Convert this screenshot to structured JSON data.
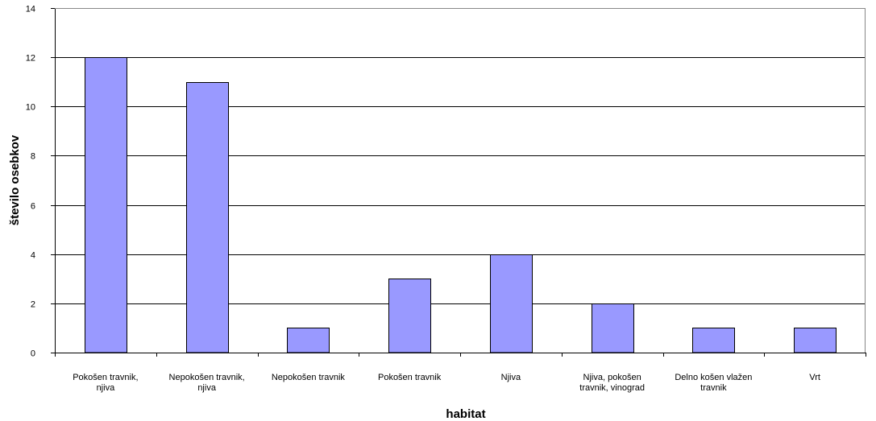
{
  "chart_data": {
    "type": "bar",
    "categories": [
      [
        "Pokošen travnik,",
        "njiva"
      ],
      [
        "Nepokošen travnik,",
        "njiva"
      ],
      [
        "Nepokošen travnik"
      ],
      [
        "Pokošen travnik"
      ],
      [
        "Njiva"
      ],
      [
        "Njiva, pokošen",
        "travnik, vinograd"
      ],
      [
        "Delno košen vlažen",
        "travnik"
      ],
      [
        "Vrt"
      ]
    ],
    "values": [
      12,
      11,
      1,
      3,
      4,
      2,
      1,
      1
    ],
    "xlabel": "habitat",
    "ylabel": "število osebkov",
    "ylim": [
      0,
      14
    ],
    "yticks": [
      0,
      2,
      4,
      6,
      8,
      10,
      12,
      14
    ],
    "grid": true,
    "legend": "none",
    "colors": {
      "bar": "#9999ff",
      "bar_border": "#000000",
      "grid": "#000000"
    }
  }
}
